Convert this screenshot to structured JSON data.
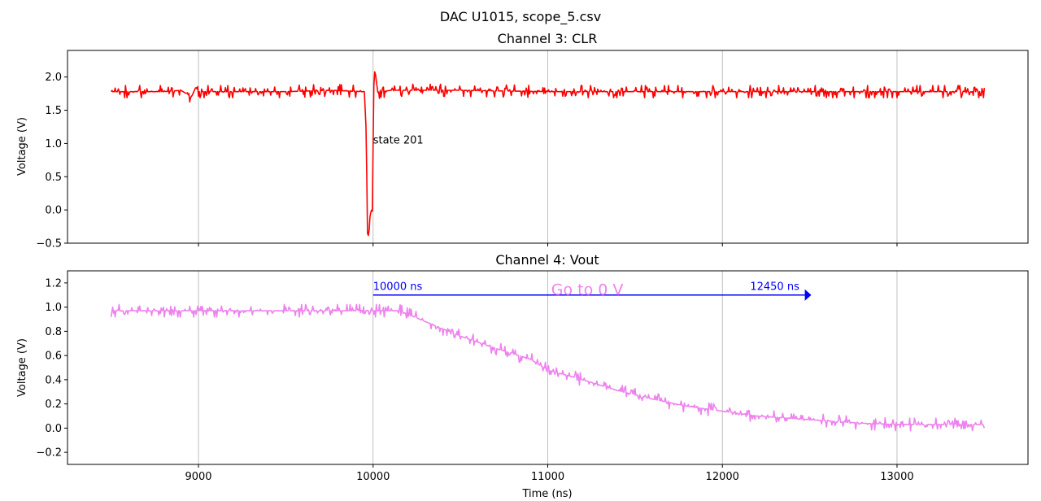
{
  "figure": {
    "suptitle": "DAC U1015, scope_5.csv"
  },
  "chart_data": [
    {
      "type": "line",
      "title": "Channel 3: CLR",
      "xlabel": "",
      "ylabel": "Voltage (V)",
      "xlim": [
        8250,
        13750
      ],
      "ylim": [
        -0.5,
        2.4
      ],
      "xticks": [
        9000,
        10000,
        11000,
        12000,
        13000
      ],
      "yticks": [
        -0.5,
        0.0,
        0.5,
        1.0,
        1.5,
        2.0
      ],
      "ytick_labels": [
        "−0.5",
        "0.0",
        "0.5",
        "1.0",
        "1.5",
        "2.0"
      ],
      "grid": "x-axis vertical lines",
      "series": [
        {
          "color": "#ff0000",
          "x": [
            8500,
            8800,
            8900,
            8960,
            8985,
            9000,
            9200,
            9500,
            9750,
            9950,
            9960,
            9968,
            9975,
            9982,
            9990,
            9996,
            10003,
            10010,
            10020,
            10030,
            10050,
            10100,
            10500,
            11000,
            12000,
            13000,
            13500
          ],
          "y": [
            1.78,
            1.78,
            1.8,
            1.7,
            1.85,
            1.78,
            1.78,
            1.78,
            1.8,
            1.78,
            1.2,
            -0.35,
            -0.4,
            -0.1,
            0.0,
            -0.02,
            1.8,
            2.12,
            1.9,
            1.72,
            1.78,
            1.8,
            1.8,
            1.78,
            1.78,
            1.78,
            1.78
          ],
          "noise_amplitude": 0.07
        }
      ],
      "annotations": [
        {
          "text": "state 201",
          "x": 10000,
          "y": 1.0
        }
      ]
    },
    {
      "type": "line",
      "title": "Channel 4: Vout",
      "xlabel": "Time (ns)",
      "ylabel": "Voltage (V)",
      "xlim": [
        8250,
        13750
      ],
      "ylim": [
        -0.3,
        1.3
      ],
      "xticks": [
        9000,
        10000,
        11000,
        12000,
        13000
      ],
      "xtick_labels": [
        "9000",
        "10000",
        "11000",
        "12000",
        "13000"
      ],
      "yticks": [
        -0.2,
        0.0,
        0.2,
        0.4,
        0.6,
        0.8,
        1.0,
        1.2
      ],
      "ytick_labels": [
        "−0.2",
        "0.0",
        "0.2",
        "0.4",
        "0.6",
        "0.8",
        "1.0",
        "1.2"
      ],
      "grid": "x-axis vertical lines",
      "series": [
        {
          "color": "#ee82ee",
          "x": [
            8500,
            9000,
            9500,
            10000,
            10150,
            10300,
            10500,
            10700,
            10900,
            11000,
            11200,
            11400,
            11600,
            11800,
            12000,
            12200,
            12400,
            12600,
            12800,
            13000,
            13300,
            13500
          ],
          "y": [
            0.97,
            0.97,
            0.97,
            0.97,
            0.97,
            0.88,
            0.76,
            0.66,
            0.57,
            0.48,
            0.4,
            0.31,
            0.24,
            0.18,
            0.14,
            0.1,
            0.08,
            0.06,
            0.04,
            0.03,
            0.03,
            0.03
          ],
          "noise_amplitude": 0.04
        }
      ],
      "annotations": [
        {
          "text": "10000 ns",
          "x": 10000,
          "y": 1.13,
          "color": "#0000ff"
        },
        {
          "text": "12450 ns",
          "x": 12450,
          "y": 1.13,
          "color": "#0000ff"
        },
        {
          "text": "Go to 0 V",
          "x": 11020,
          "y": 1.13,
          "color": "#ee82ee"
        }
      ],
      "arrow": {
        "x_start": 10000,
        "x_end": 12500,
        "y": 1.1,
        "color": "#0000ff"
      }
    }
  ]
}
